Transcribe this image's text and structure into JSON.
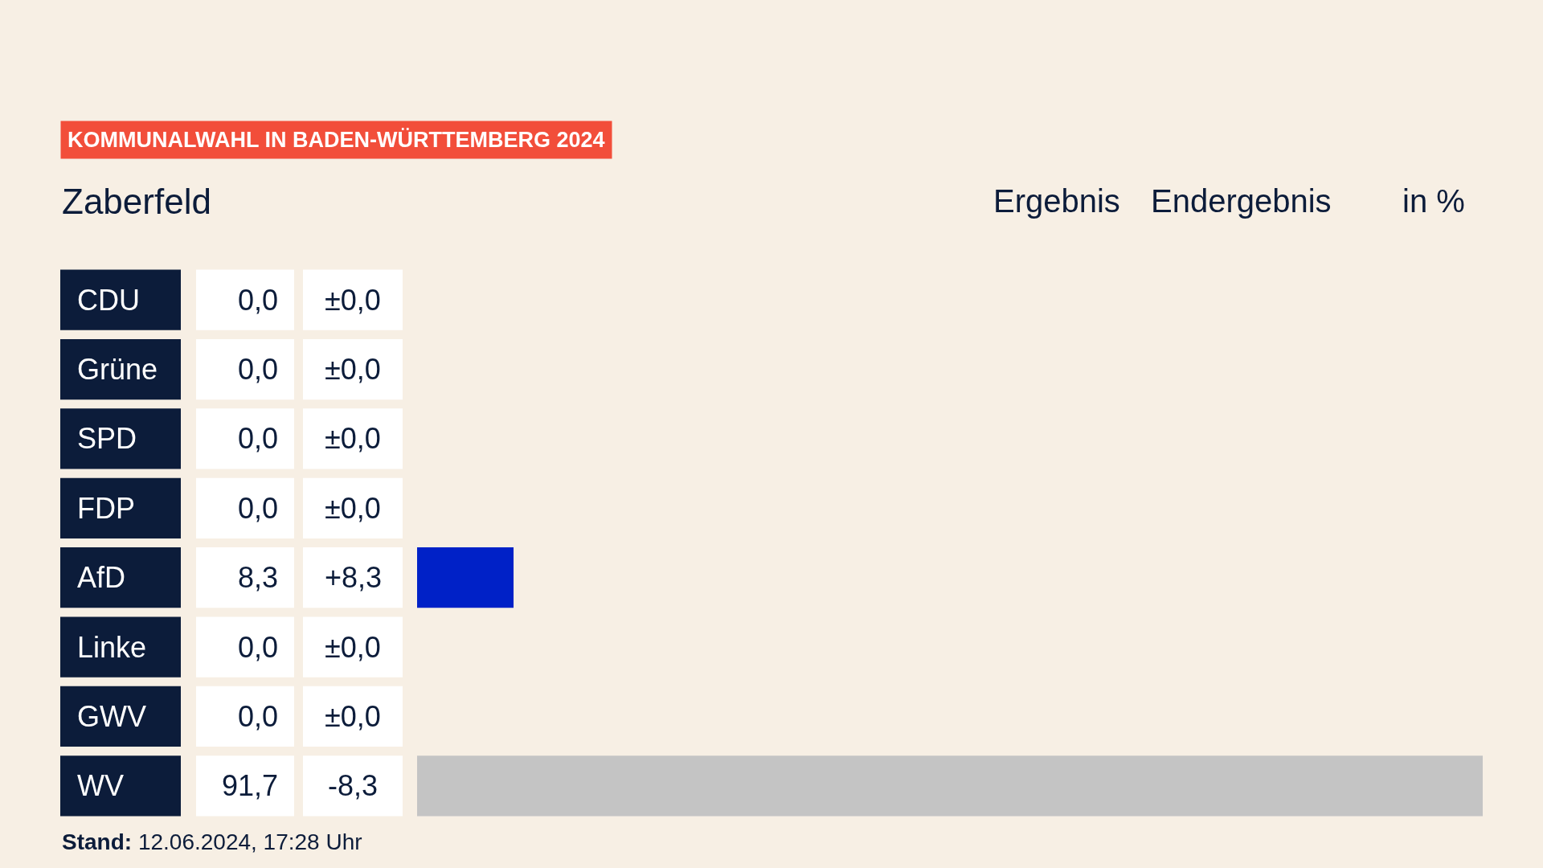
{
  "chart_data": {
    "type": "bar",
    "orientation": "horizontal",
    "title": "KOMMUNALWAHL IN BADEN-WÜRTTEMBERG 2024",
    "subtitle": "Zaberfeld",
    "categories": [
      "CDU",
      "Grüne",
      "SPD",
      "FDP",
      "AfD",
      "Linke",
      "GWV",
      "WV"
    ],
    "values": [
      0,
      0,
      0,
      0,
      8.3,
      0,
      0,
      91.7
    ],
    "value_labels": [
      "0,0",
      "0,0",
      "0,0",
      "0,0",
      "8,3",
      "0,0",
      "0,0",
      "91,7"
    ],
    "colors": [
      null,
      null,
      null,
      null,
      "#0021c7",
      null,
      null,
      "#c4c4c4"
    ],
    "xlim": [
      0,
      91.7
    ],
    "annotations": [
      "Ergebnis",
      "Endergebnis",
      "in %",
      "±0,0",
      "±0,0",
      "±0,0",
      "±0,0",
      "+8,3",
      "±0,0",
      "±0,0",
      "-8,3",
      "Stand: 12.06.2024, 17:28 Uhr"
    ]
  }
}
